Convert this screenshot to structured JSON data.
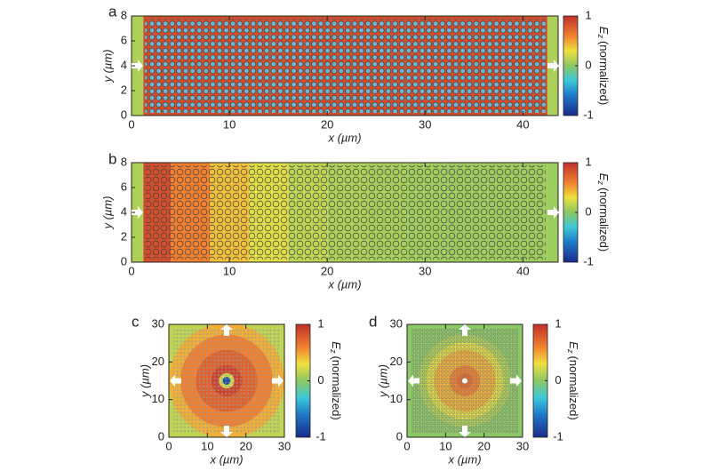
{
  "chart_data": [
    {
      "type": "heatmap",
      "label": "a",
      "x_label": "x (µm)",
      "y_label": "y (µm)",
      "xlim": [
        0,
        43.6
      ],
      "ylim": [
        0,
        8
      ],
      "xticks": [
        0,
        10,
        20,
        30,
        40
      ],
      "yticks": [
        0,
        2,
        4,
        6,
        8
      ],
      "x_edges": [
        0,
        1.2,
        42.5,
        43.6
      ],
      "values": [
        0.1,
        0.85,
        0.1
      ],
      "colorbar": {
        "lim": [
          -1,
          1
        ],
        "ticks": [
          1,
          0,
          -1
        ],
        "symbol": "E",
        "subscript": "z",
        "text": "(normalized)"
      }
    },
    {
      "type": "heatmap",
      "label": "b",
      "x_label": "x (µm)",
      "y_label": "y (µm)",
      "xlim": [
        0,
        43.6
      ],
      "ylim": [
        0,
        8
      ],
      "xticks": [
        0,
        10,
        20,
        30,
        40
      ],
      "yticks": [
        0,
        2,
        4,
        6,
        8
      ],
      "x_edges": [
        0,
        1.2,
        4,
        8,
        12,
        16,
        20,
        24,
        28,
        32,
        36,
        40,
        42.5,
        43.6
      ],
      "values": [
        0.1,
        0.85,
        0.6,
        0.4,
        0.25,
        0.15,
        0.1,
        0.08,
        0.06,
        0.05,
        0.05,
        0.05,
        0.05
      ],
      "colorbar": {
        "lim": [
          -1,
          1
        ],
        "ticks": [
          1,
          0,
          -1
        ],
        "symbol": "E",
        "subscript": "z",
        "text": "(normalized)"
      }
    },
    {
      "type": "radial",
      "label": "c",
      "x_label": "x (µm)",
      "y_label": "y (µm)",
      "xlim": [
        0,
        30
      ],
      "ylim": [
        0,
        30
      ],
      "xticks": [
        0,
        10,
        20,
        30
      ],
      "yticks": [
        0,
        10,
        20,
        30
      ],
      "center": [
        15,
        15
      ],
      "r_edges": [
        0,
        1,
        2,
        4,
        8,
        12,
        15,
        22
      ],
      "values": [
        -0.8,
        0.2,
        0.9,
        0.75,
        0.6,
        0.45,
        0.15
      ],
      "colorbar": {
        "lim": [
          -1,
          1
        ],
        "ticks": [
          1,
          0,
          -1
        ],
        "symbol": "E",
        "subscript": "z",
        "text": "(normalized)"
      }
    },
    {
      "type": "radial",
      "label": "d",
      "x_label": "x (µm)",
      "y_label": "y (µm)",
      "xlim": [
        0,
        30
      ],
      "ylim": [
        0,
        30
      ],
      "xticks": [
        0,
        10,
        20,
        30
      ],
      "yticks": [
        0,
        10,
        20,
        30
      ],
      "center": [
        15,
        15
      ],
      "r_edges": [
        0,
        1,
        2,
        4,
        8,
        10,
        12,
        22
      ],
      "values": [
        0.7,
        0.7,
        0.6,
        0.45,
        0.25,
        0.1,
        0.0
      ],
      "colorbar": {
        "lim": [
          -1,
          1
        ],
        "ticks": [
          1,
          0,
          -1
        ],
        "symbol": "E",
        "subscript": "z",
        "text": "(normalized)"
      }
    }
  ]
}
